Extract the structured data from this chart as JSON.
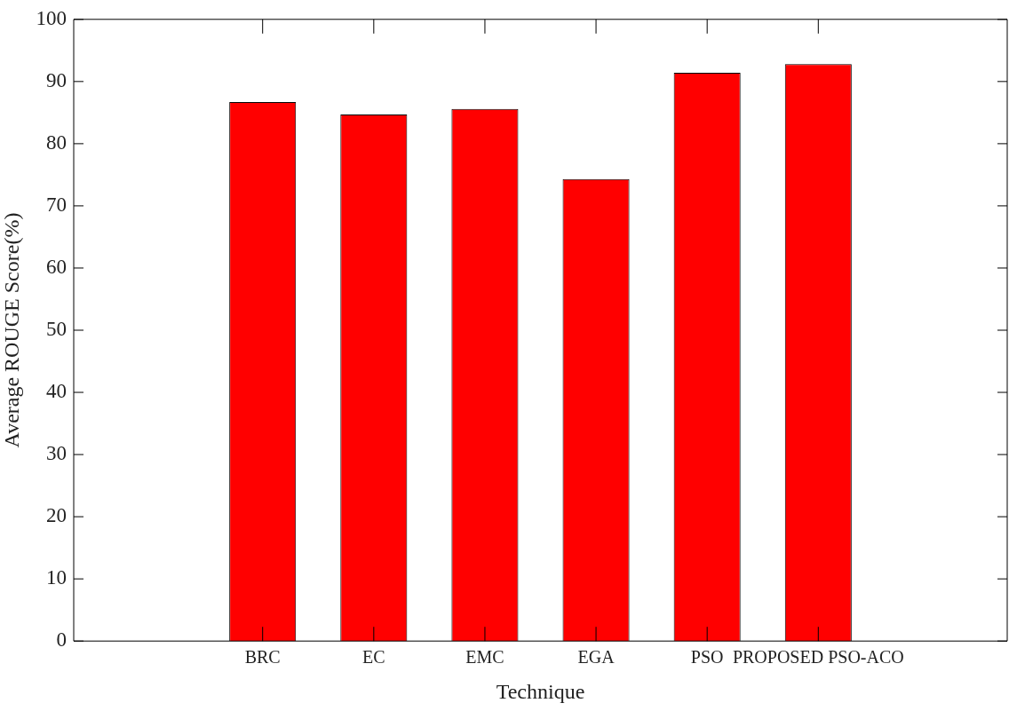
{
  "chart_data": {
    "type": "bar",
    "xlabel": "Technique",
    "ylabel": "Average ROUGE Score(%)",
    "categories": [
      "BRC",
      "EC",
      "EMC",
      "EGA",
      "PSO",
      "PROPOSED PSO-ACO"
    ],
    "values": [
      86.7,
      84.7,
      85.6,
      74.3,
      91.4,
      92.8
    ],
    "color": "#ff0000",
    "ylim": [
      0,
      100
    ],
    "yticks": [
      0,
      10,
      20,
      30,
      40,
      50,
      60,
      70,
      80,
      90,
      100
    ],
    "grid": false,
    "legend": false
  }
}
